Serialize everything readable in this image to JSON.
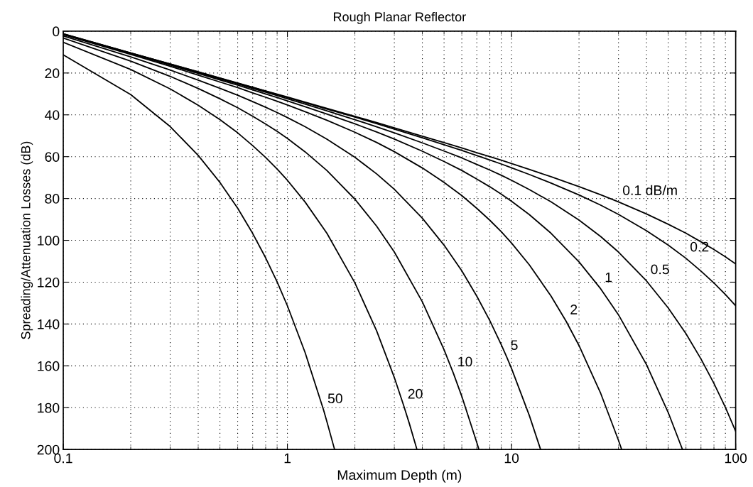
{
  "chart_data": {
    "type": "line",
    "title": "Rough Planar Reflector",
    "xlabel": "Maximum Depth (m)",
    "ylabel": "Spreading/Attenuation Losses (dB)",
    "log": "x",
    "xlim": [
      0.1,
      100
    ],
    "xticks": [
      0.1,
      1,
      10,
      100
    ],
    "ylim": [
      200,
      0
    ],
    "yticks": [
      0,
      20,
      40,
      60,
      80,
      100,
      120,
      140,
      160,
      180,
      200
    ],
    "grid": true,
    "marker": "none",
    "line_style": "solid",
    "series": [
      {
        "color": "#000000",
        "x": [
          0.1,
          0.2,
          0.3,
          0.4,
          0.5,
          0.6,
          0.7,
          0.8,
          0.9,
          1,
          1.2,
          1.5,
          2,
          2.5,
          3,
          4,
          5,
          6,
          7,
          8,
          9,
          10,
          12,
          15,
          20,
          25,
          30,
          40,
          50,
          60,
          70,
          80,
          90,
          100
        ],
        "values": [
          1.3,
          10.4,
          15.7,
          19.4,
          22.4,
          24.8,
          26.8,
          28.6,
          30.1,
          31.5,
          33.9,
          36.9,
          40.7,
          43.7,
          46.2,
          50.2,
          53.3,
          55.8,
          58.1,
          60.0,
          61.7,
          63.3,
          66.1,
          69.6,
          74.3,
          78.2,
          81.6,
          87.4,
          92.3,
          96.6,
          100.7,
          104.4,
          107.9,
          111.3
        ]
      },
      {
        "color": "#000000",
        "x": [
          0.1,
          0.2,
          0.3,
          0.4,
          0.5,
          0.6,
          0.7,
          0.8,
          0.9,
          1,
          1.2,
          1.5,
          2,
          2.5,
          3,
          4,
          5,
          6,
          7,
          8,
          9,
          10,
          12,
          15,
          20,
          25,
          30,
          40,
          50,
          60,
          70,
          80,
          90,
          100
        ],
        "values": [
          1.3,
          10.4,
          15.7,
          19.5,
          22.5,
          24.9,
          26.9,
          28.7,
          30.3,
          31.7,
          34.2,
          37.2,
          41.1,
          44.2,
          46.8,
          51.0,
          54.3,
          57.0,
          59.5,
          61.6,
          63.5,
          65.3,
          68.5,
          72.6,
          78.3,
          83.2,
          87.6,
          95.4,
          102.3,
          108.6,
          114.7,
          120.4,
          125.9,
          131.3
        ]
      },
      {
        "color": "#000000",
        "x": [
          0.1,
          0.2,
          0.3,
          0.4,
          0.5,
          0.6,
          0.7,
          0.8,
          0.9,
          1,
          1.2,
          1.5,
          2,
          2.5,
          3,
          4,
          5,
          6,
          7,
          8,
          9,
          10,
          12,
          15,
          20,
          25,
          30,
          40,
          50,
          60,
          70,
          80,
          90,
          100
        ],
        "values": [
          1.4,
          10.5,
          15.9,
          19.8,
          22.8,
          25.2,
          27.4,
          29.2,
          30.8,
          32.3,
          34.9,
          38.1,
          42.3,
          45.7,
          48.6,
          53.4,
          57.3,
          60.6,
          63.7,
          66.4,
          68.9,
          71.3,
          75.7,
          81.6,
          90.3,
          98.2,
          105.6,
          119.4,
          132.3,
          144.6,
          156.7,
          168.4,
          179.9,
          191.3
        ]
      },
      {
        "color": "#000000",
        "x": [
          0.1,
          0.2,
          0.3,
          0.4,
          0.5,
          0.6,
          0.7,
          0.8,
          0.9,
          1,
          1.2,
          1.5,
          2,
          2.5,
          3,
          4,
          5,
          6,
          7,
          8,
          9,
          10,
          12,
          15,
          20,
          25,
          30,
          40,
          50,
          57.9
        ],
        "values": [
          1.5,
          10.7,
          16.2,
          20.2,
          23.3,
          25.8,
          28.1,
          30.0,
          31.7,
          33.3,
          36.1,
          39.6,
          44.3,
          48.2,
          51.6,
          57.4,
          62.3,
          66.6,
          70.7,
          74.4,
          77.9,
          81.3,
          87.7,
          96.6,
          110.3,
          123.2,
          135.6,
          159.4,
          182.3,
          200.0
        ]
      },
      {
        "color": "#000000",
        "x": [
          0.1,
          0.2,
          0.3,
          0.4,
          0.5,
          0.6,
          0.7,
          0.8,
          0.9,
          1,
          1.2,
          1.5,
          2,
          2.5,
          3,
          4,
          5,
          6,
          7,
          8,
          9,
          10,
          12,
          15,
          17.5,
          20,
          25,
          30,
          31
        ],
        "values": [
          1.7,
          11.1,
          16.8,
          21.0,
          24.3,
          27.0,
          29.5,
          31.6,
          33.5,
          35.3,
          38.5,
          42.6,
          48.3,
          53.2,
          57.6,
          65.4,
          72.3,
          78.6,
          84.7,
          90.4,
          95.9,
          101.3,
          111.7,
          126.6,
          138.6,
          150.3,
          173.2,
          195.6,
          200.0
        ]
      },
      {
        "color": "#000000",
        "x": [
          0.1,
          0.2,
          0.3,
          0.4,
          0.5,
          0.6,
          0.7,
          0.8,
          0.9,
          1,
          1.2,
          1.5,
          2,
          2.5,
          3,
          4,
          5,
          6,
          7,
          8,
          9,
          9.5,
          10,
          12,
          13.45
        ],
        "values": [
          2.3,
          12.3,
          18.6,
          23.4,
          27.3,
          30.6,
          33.7,
          36.4,
          38.9,
          41.3,
          45.7,
          51.6,
          60.3,
          68.2,
          75.6,
          89.4,
          102.3,
          114.6,
          126.7,
          138.4,
          149.9,
          155.6,
          161.3,
          183.7,
          199.7
        ]
      },
      {
        "color": "#000000",
        "x": [
          0.1,
          0.2,
          0.3,
          0.4,
          0.5,
          0.6,
          0.7,
          0.8,
          0.9,
          1,
          1.2,
          1.5,
          2,
          2.5,
          3,
          4,
          5,
          5.5,
          6,
          7,
          7.15
        ],
        "values": [
          3.3,
          14.3,
          21.6,
          27.4,
          32.3,
          36.6,
          40.7,
          44.4,
          47.9,
          51.3,
          57.7,
          66.6,
          80.3,
          93.2,
          105.6,
          129.4,
          152.3,
          163.5,
          174.6,
          196.7,
          199.9
        ]
      },
      {
        "color": "#000000",
        "x": [
          0.1,
          0.2,
          0.3,
          0.4,
          0.5,
          0.6,
          0.7,
          0.8,
          0.9,
          1,
          1.2,
          1.5,
          2,
          2.5,
          3,
          3.3,
          3.5,
          3.78
        ],
        "values": [
          5.3,
          18.3,
          27.6,
          35.4,
          42.3,
          48.6,
          54.7,
          60.4,
          65.9,
          71.3,
          81.7,
          96.6,
          120.3,
          143.2,
          165.6,
          178.9,
          187.6,
          199.8
        ]
      },
      {
        "color": "#000000",
        "x": [
          0.1,
          0.2,
          0.3,
          0.4,
          0.5,
          0.6,
          0.7,
          0.8,
          0.9,
          1,
          1.2,
          1.45,
          1.5,
          1.62
        ],
        "values": [
          11.3,
          30.3,
          45.6,
          59.4,
          72.3,
          84.6,
          96.7,
          108.4,
          119.9,
          131.3,
          153.7,
          181.1,
          186.6,
          199.6
        ]
      }
    ],
    "annotations": [
      {
        "text": "0.1 dB/m",
        "x": 30,
        "y": 81.6
      },
      {
        "text": "0.2",
        "x": 60,
        "y": 108.6
      },
      {
        "text": "0.5",
        "x": 40,
        "y": 119.4
      },
      {
        "text": "1",
        "x": 25,
        "y": 123.2
      },
      {
        "text": "2",
        "x": 17.5,
        "y": 138.6
      },
      {
        "text": "5",
        "x": 9.5,
        "y": 155.6
      },
      {
        "text": "10",
        "x": 5.5,
        "y": 163.5
      },
      {
        "text": "20",
        "x": 3.3,
        "y": 178.9
      },
      {
        "text": "50",
        "x": 1.45,
        "y": 181.1
      }
    ]
  }
}
